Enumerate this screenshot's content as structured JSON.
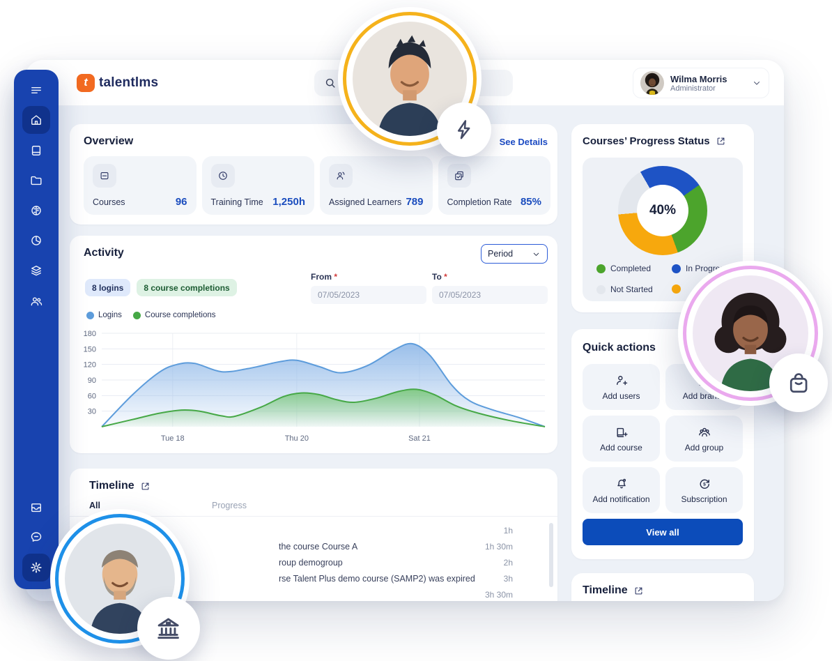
{
  "brand": {
    "logo_text": "talentlms",
    "logo_letter": "t",
    "logo_color": "#f26a21"
  },
  "header": {
    "user": {
      "name": "Wilma Morris",
      "role": "Administrator"
    }
  },
  "sidebar": {
    "items": [
      {
        "icon": "menu"
      },
      {
        "icon": "home",
        "active": true
      },
      {
        "icon": "courses-book"
      },
      {
        "icon": "folder"
      },
      {
        "icon": "ai-brain"
      },
      {
        "icon": "reports-pie"
      },
      {
        "icon": "layers"
      },
      {
        "icon": "users-group"
      }
    ],
    "bottom_items": [
      {
        "icon": "inbox-tray"
      },
      {
        "icon": "message-bubble"
      },
      {
        "icon": "settings-gear",
        "active": true
      }
    ]
  },
  "overview": {
    "title": "Overview",
    "see_details": "See Details",
    "stats": [
      {
        "label": "Courses",
        "value": "96",
        "icon": "course-card"
      },
      {
        "label": "Training Time",
        "value": "1,250h",
        "icon": "clock"
      },
      {
        "label": "Assigned Learners",
        "value": "789",
        "icon": "learner-person"
      },
      {
        "label": "Completion Rate",
        "value": "85%",
        "icon": "completion-check"
      }
    ]
  },
  "activity": {
    "title": "Activity",
    "period_label": "Period",
    "badges": [
      {
        "label": "8 logins",
        "bg": "#dfe9fb",
        "color": "#22315e"
      },
      {
        "label": "8 course completions",
        "bg": "#def2e4",
        "color": "#1d5c33"
      }
    ],
    "from_label": "From",
    "to_label": "To",
    "required_mark": "*",
    "from_value": "07/05/2023",
    "to_value": "07/05/2023",
    "legend": [
      {
        "label": "Logins",
        "color": "#5d9cdb"
      },
      {
        "label": "Course completions",
        "color": "#46a846"
      }
    ]
  },
  "progress": {
    "title": "Courses’ Progress Status",
    "center_label": "40%",
    "legend": [
      {
        "label": "Completed",
        "color": "#4ca42c"
      },
      {
        "label": "In Progress",
        "color": "#1e53c5"
      },
      {
        "label": "Not Started",
        "color": "#e3e7ed"
      },
      {
        "label": "",
        "color": "#f7a80d"
      }
    ]
  },
  "quick_actions": {
    "title": "Quick actions",
    "view_all_label": "View all",
    "actions": [
      {
        "label": "Add users",
        "icon": "user-plus"
      },
      {
        "label": "Add branch",
        "icon": "branch-building"
      },
      {
        "label": "Add course",
        "icon": "course-plus"
      },
      {
        "label": "Add group",
        "icon": "people-group"
      },
      {
        "label": "Add notification",
        "icon": "bell"
      },
      {
        "label": "Subscription",
        "icon": "refresh-dollar"
      }
    ]
  },
  "timeline": {
    "title": "Timeline",
    "tabs": [
      {
        "label": "All",
        "active": true
      },
      {
        "label": "Progress",
        "active": false
      }
    ],
    "rows": [
      {
        "text": "",
        "time": "1h"
      },
      {
        "text": "the course Course A",
        "time": "1h 30m"
      },
      {
        "text": "roup demogroup",
        "time": "2h"
      },
      {
        "text": "rse Talent Plus demo course (SAMP2) was expired",
        "time": "3h"
      },
      {
        "text": "",
        "time": "3h 30m"
      }
    ]
  },
  "timeline_secondary": {
    "title": "Timeline"
  },
  "colors": {
    "accent_blue": "#1b4dbe",
    "button_blue": "#0c4cba",
    "sidebar_blue": "#1843af",
    "ring_yellow": "#f5b21b",
    "ring_pink": "#eaa9ee",
    "ring_blue": "#1e90e8"
  },
  "chart_data": [
    {
      "type": "area",
      "title": "Activity",
      "ylim": [
        0,
        180
      ],
      "y_ticks": [
        30,
        60,
        90,
        120,
        150,
        180
      ],
      "x_ticks": [
        {
          "label": "Tue 18",
          "x": 0.16
        },
        {
          "label": "Thu 20",
          "x": 0.44
        },
        {
          "label": "Sat 21",
          "x": 0.717
        }
      ],
      "grid": true,
      "series": [
        {
          "name": "Logins",
          "color": "#5d9cdb",
          "fill": "#8fb8e8",
          "points": [
            [
              0,
              0
            ],
            [
              0.07,
              62
            ],
            [
              0.13,
              105
            ],
            [
              0.17,
              120
            ],
            [
              0.21,
              122
            ],
            [
              0.27,
              106
            ],
            [
              0.33,
              112
            ],
            [
              0.4,
              125
            ],
            [
              0.44,
              128
            ],
            [
              0.49,
              116
            ],
            [
              0.54,
              104
            ],
            [
              0.6,
              118
            ],
            [
              0.66,
              148
            ],
            [
              0.7,
              160
            ],
            [
              0.74,
              138
            ],
            [
              0.79,
              80
            ],
            [
              0.83,
              50
            ],
            [
              0.88,
              33
            ],
            [
              0.94,
              18
            ],
            [
              1,
              0
            ]
          ]
        },
        {
          "name": "Course completions",
          "color": "#46a846",
          "fill": "#7cc87c",
          "points": [
            [
              0,
              0
            ],
            [
              0.07,
              14
            ],
            [
              0.13,
              26
            ],
            [
              0.18,
              32
            ],
            [
              0.22,
              30
            ],
            [
              0.27,
              21
            ],
            [
              0.3,
              20
            ],
            [
              0.36,
              38
            ],
            [
              0.41,
              58
            ],
            [
              0.45,
              65
            ],
            [
              0.49,
              62
            ],
            [
              0.53,
              52
            ],
            [
              0.57,
              47
            ],
            [
              0.62,
              55
            ],
            [
              0.67,
              68
            ],
            [
              0.71,
              72
            ],
            [
              0.75,
              62
            ],
            [
              0.8,
              40
            ],
            [
              0.85,
              26
            ],
            [
              0.92,
              12
            ],
            [
              1,
              0
            ]
          ]
        }
      ]
    },
    {
      "type": "donut",
      "center_label": "40%",
      "rotation": -30,
      "segments": [
        {
          "label": "In Progress",
          "color": "#1e53c5",
          "degrees": 85
        },
        {
          "label": "Completed",
          "color": "#4ca42c",
          "degrees": 105
        },
        {
          "label": "",
          "color": "#f7a80d",
          "degrees": 105
        },
        {
          "label": "Not Started",
          "color": "#e3e7ed",
          "degrees": 65
        }
      ]
    }
  ]
}
